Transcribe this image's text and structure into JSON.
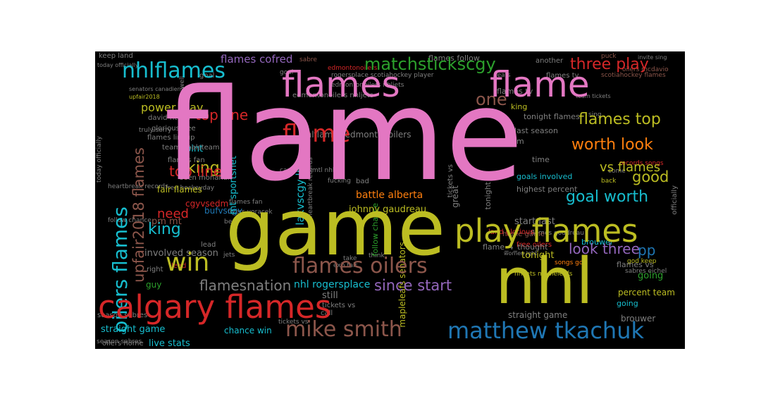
{
  "colors": {
    "background": "#000000",
    "pink": "#e377c2",
    "olive": "#bcbd22",
    "red": "#d62728",
    "cyan": "#17becf",
    "brown": "#8c564b",
    "purple": "#9467bd",
    "blue": "#1f77b4",
    "green": "#2ca02c",
    "orange": "#ff7f0e",
    "gray": "#7f7f7f"
  },
  "words": [
    "flame",
    "game",
    "calgary flames",
    "nhl",
    "flames",
    "flame",
    "play flames",
    "oilers flames",
    "nhlflames",
    "matchstickscgy",
    "one",
    "three play",
    "flames top",
    "worth look",
    "goal worth",
    "flames oilers",
    "mike smith",
    "matthew tkachuk",
    "win",
    "since start",
    "flamesnation",
    "look three",
    "top line",
    "upfair2018 flames",
    "king",
    "good",
    "vs flames",
    "line lakvscgy",
    "need",
    "pp",
    "power play",
    "david rittich",
    "glorious free",
    "team goalsteam",
    "point",
    "lakvscgy live",
    "mt sportsnet",
    "fair flames",
    "cgyvsedm",
    "pm mt",
    "ryan lomberg",
    "bufvscgy",
    "johnny gaudreau",
    "battle alberta",
    "start last",
    "home game",
    "tonight",
    "tonight flames",
    "nhlflames edmontonoilers",
    "last season",
    "goals involved",
    "highest percent",
    "time",
    "bad",
    "im",
    "flames cofred",
    "flames follow",
    "flames tv",
    "going",
    "flames vs",
    "percent team",
    "flame_4_thought",
    "brouwer",
    "straight game",
    "chance win",
    "live stats",
    "guy",
    "great",
    "mapleleafs senators",
    "nhl rogersplace",
    "still",
    "call",
    "oilers home",
    "involved season",
    "right",
    "lead",
    "jets",
    "another",
    "goal",
    "sabre",
    "keep land",
    "rogersplace scotiahockey player",
    "edmontonoilers nhljets",
    "senators canadiensmtl",
    "truly sorry",
    "flames lineup",
    "land glorious",
    "records songs",
    "back",
    "come",
    "free oilers",
    "flames goudreau",
    "songs go",
    "god keep",
    "sabres eichel",
    "nhljets mapleleafs",
    "season sabres",
    "follow chance",
    "heartbreak records",
    "tickets vs",
    "canadiensmtl nhl",
    "exb fair",
    "flames fan",
    "best",
    "flyers voracek",
    "team tickets",
    "scotiahockey flames",
    "puck",
    "free hockeyday",
    "fucking",
    "seen monahan",
    "oilers mcdavio",
    "sing",
    "women lgbt",
    "think",
    "take",
    "officially",
    "today officially",
    "well",
    "upfair2018",
    "edmontonoilers",
    "invite sing",
    "leafs"
  ]
}
